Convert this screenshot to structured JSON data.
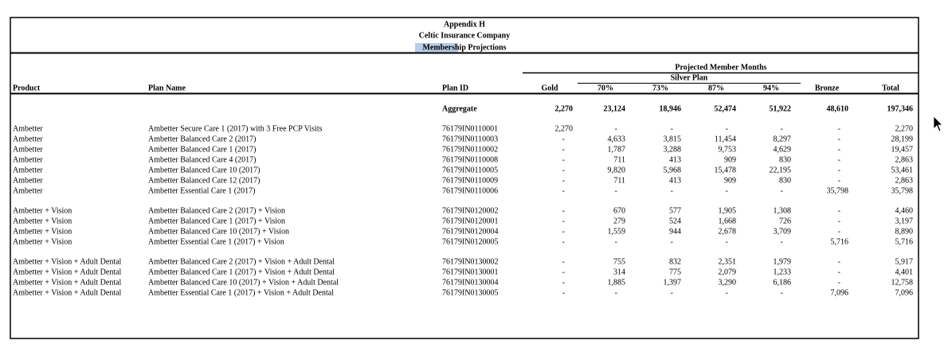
{
  "header": {
    "title": "Appendix H",
    "company": "Celtic Insurance Company",
    "subtitle": "Membership Projections"
  },
  "table": {
    "group_header": "Projected Member Months",
    "subgroup_header": "Silver Plan",
    "columns": [
      "Product",
      "Plan Name",
      "Plan ID",
      "Gold",
      "70%",
      "73%",
      "87%",
      "94%",
      "Bronze",
      "Total"
    ],
    "aggregate": [
      "Aggregate",
      "2,270",
      "23,124",
      "18,946",
      "52,474",
      "51,922",
      "48,610",
      "197,346"
    ],
    "groups": [
      [
        [
          "Ambetter",
          "Ambetter Secure Care 1 (2017) with 3 Free PCP Visits",
          "76179IN0110001",
          "2,270",
          "-",
          "-",
          "-",
          "-",
          "-",
          "2,270"
        ],
        [
          "Ambetter",
          "Ambetter Balanced Care 2 (2017)",
          "76179IN0110003",
          "-",
          "4,633",
          "3,815",
          "11,454",
          "8,297",
          "-",
          "28,199"
        ],
        [
          "Ambetter",
          "Ambetter Balanced Care 1 (2017)",
          "76179IN0110002",
          "-",
          "1,787",
          "3,288",
          "9,753",
          "4,629",
          "-",
          "19,457"
        ],
        [
          "Ambetter",
          "Ambetter Balanced Care 4 (2017)",
          "76179IN0110008",
          "-",
          "711",
          "413",
          "909",
          "830",
          "-",
          "2,863"
        ],
        [
          "Ambetter",
          "Ambetter Balanced Care 10 (2017)",
          "76179IN0110005",
          "-",
          "9,820",
          "5,968",
          "15,478",
          "22,195",
          "-",
          "53,461"
        ],
        [
          "Ambetter",
          "Ambetter Balanced Care 12 (2017)",
          "76179IN0110009",
          "-",
          "711",
          "413",
          "909",
          "830",
          "-",
          "2,863"
        ],
        [
          "Ambetter",
          "Ambetter Essential Care 1 (2017)",
          "76179IN0110006",
          "-",
          "-",
          "-",
          "-",
          "-",
          "35,798",
          "35,798"
        ]
      ],
      [
        [
          "Ambetter + Vision",
          "Ambetter Balanced Care 2 (2017) + Vision",
          "76179IN0120002",
          "-",
          "670",
          "577",
          "1,905",
          "1,308",
          "-",
          "4,460"
        ],
        [
          "Ambetter + Vision",
          "Ambetter Balanced Care 1 (2017) + Vision",
          "76179IN0120001",
          "-",
          "279",
          "524",
          "1,668",
          "726",
          "-",
          "3,197"
        ],
        [
          "Ambetter + Vision",
          "Ambetter Balanced Care 10 (2017) + Vision",
          "76179IN0120004",
          "-",
          "1,559",
          "944",
          "2,678",
          "3,709",
          "-",
          "8,890"
        ],
        [
          "Ambetter + Vision",
          "Ambetter Essential Care 1 (2017) + Vision",
          "76179IN0120005",
          "-",
          "-",
          "-",
          "-",
          "-",
          "5,716",
          "5,716"
        ]
      ],
      [
        [
          "Ambetter + Vision + Adult Dental",
          "Ambetter Balanced Care 2 (2017) + Vision + Adult Dental",
          "76179IN0130002",
          "-",
          "755",
          "832",
          "2,351",
          "1,979",
          "-",
          "5,917"
        ],
        [
          "Ambetter + Vision + Adult Dental",
          "Ambetter Balanced Care 1 (2017) + Vision + Adult Dental",
          "76179IN0130001",
          "-",
          "314",
          "775",
          "2,079",
          "1,233",
          "-",
          "4,401"
        ],
        [
          "Ambetter + Vision + Adult Dental",
          "Ambetter Balanced Care 10 (2017) + Vision + Adult Dental",
          "76179IN0130004",
          "-",
          "1,885",
          "1,397",
          "3,290",
          "6,186",
          "-",
          "12,758"
        ],
        [
          "Ambetter + Vision + Adult Dental",
          "Ambetter Essential Care 1 (2017) + Vision + Adult Dental",
          "76179IN0130005",
          "-",
          "-",
          "-",
          "-",
          "-",
          "7,096",
          "7,096"
        ]
      ]
    ]
  }
}
